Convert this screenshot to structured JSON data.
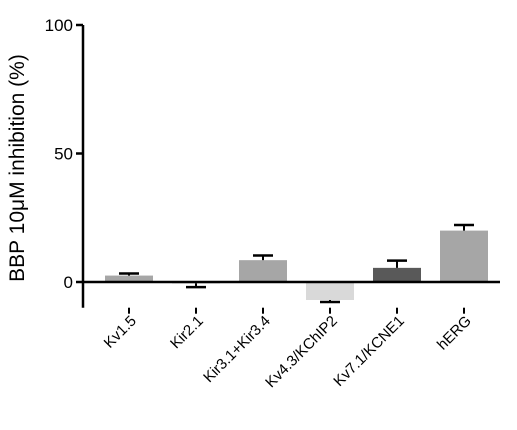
{
  "chart_data": {
    "type": "bar",
    "ylabel": "BBP 10μM inhibition (%)",
    "ylim": [
      -10,
      100
    ],
    "yticks": [
      0,
      50,
      100
    ],
    "categories": [
      "Kv1.5",
      "Kir2.1",
      "Kir3.1+Kir3.4",
      "Kv4.3/KChIP2",
      "Kv7.1/KCNE1",
      "hERG"
    ],
    "values": [
      2.5,
      -0.5,
      8.5,
      -7,
      5.5,
      20
    ],
    "errors": [
      0.8,
      1.5,
      1.8,
      0.8,
      2.8,
      2.2
    ],
    "colors": [
      "#a6a6a6",
      "#a6a6a6",
      "#a6a6a6",
      "#d9d9d9",
      "#595959",
      "#a6a6a6"
    ],
    "grid": false,
    "legend": "none"
  }
}
